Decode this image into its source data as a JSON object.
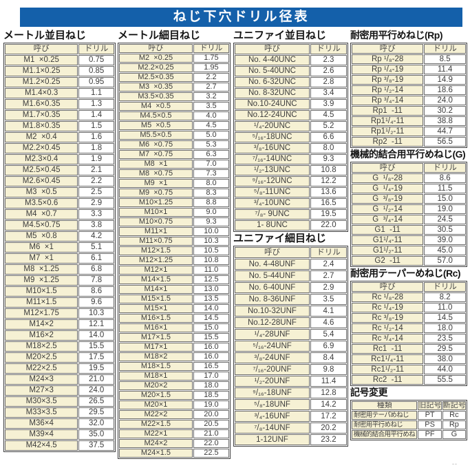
{
  "title": "ねじ下穴ドリル径表",
  "column_headers": {
    "name": "呼び",
    "drill": "ドリル"
  },
  "colors": {
    "title_bg": "#1460aa",
    "title_text": "#ffffff",
    "cell_accent": "#f6f1d4"
  },
  "corner_mark": "--",
  "sections": {
    "metric_coarse": {
      "title": "メートル並目ねじ",
      "rows": [
        [
          "M1  ×0.25",
          "0.75"
        ],
        [
          "M1.1×0.25",
          "0.85"
        ],
        [
          "M1.2×0.25",
          "0.95"
        ],
        [
          "M1.4×0.3",
          "1.1"
        ],
        [
          "M1.6×0.35",
          "1.3"
        ],
        [
          "M1.7×0.35",
          "1.4"
        ],
        [
          "M1.8×0.35",
          "1.5"
        ],
        [
          "M2  ×0.4",
          "1.6"
        ],
        [
          "M2.2×0.45",
          "1.8"
        ],
        [
          "M2.3×0.4",
          "1.9"
        ],
        [
          "M2.5×0.45",
          "2.1"
        ],
        [
          "M2.6×0.45",
          "2.2"
        ],
        [
          "M3  ×0.5",
          "2.5"
        ],
        [
          "M3.5×0.6",
          "2.9"
        ],
        [
          "M4  ×0.7",
          "3.3"
        ],
        [
          "M4.5×0.75",
          "3.8"
        ],
        [
          "M5  ×0.8",
          "4.2"
        ],
        [
          "M6  ×1",
          "5.1"
        ],
        [
          "M7  ×1",
          "6.1"
        ],
        [
          "M8  ×1.25",
          "6.8"
        ],
        [
          "M9  ×1.25",
          "7.8"
        ],
        [
          "M10×1.5",
          "8.6"
        ],
        [
          "M11×1.5",
          "9.6"
        ],
        [
          "M12×1.75",
          "10.3"
        ],
        [
          "M14×2",
          "12.1"
        ],
        [
          "M16×2",
          "14.0"
        ],
        [
          "M18×2.5",
          "15.5"
        ],
        [
          "M20×2.5",
          "17.5"
        ],
        [
          "M22×2.5",
          "19.5"
        ],
        [
          "M24×3",
          "21.0"
        ],
        [
          "M27×3",
          "24.0"
        ],
        [
          "M30×3.5",
          "26.5"
        ],
        [
          "M33×3.5",
          "29.5"
        ],
        [
          "M36×4",
          "32.0"
        ],
        [
          "M39×4",
          "35.0"
        ],
        [
          "M42×4.5",
          "37.5"
        ]
      ]
    },
    "metric_fine": {
      "title": "メートル細目ねじ",
      "rows": [
        [
          "M2  ×0.25",
          "1.75"
        ],
        [
          "M2.2×0.25",
          "1.95"
        ],
        [
          "M2.5×0.35",
          "2.2"
        ],
        [
          "M3  ×0.35",
          "2.7"
        ],
        [
          "M3.5×0.35",
          "3.2"
        ],
        [
          "M4  ×0.5",
          "3.5"
        ],
        [
          "M4.5×0.5",
          "4.0"
        ],
        [
          "M5  ×0.5",
          "4.5"
        ],
        [
          "M5.5×0.5",
          "5.0"
        ],
        [
          "M6  ×0.75",
          "5.3"
        ],
        [
          "M7  ×0.75",
          "6.3"
        ],
        [
          "M8  ×1",
          "7.0"
        ],
        [
          "M8  ×0.75",
          "7.3"
        ],
        [
          "M9  ×1",
          "8.0"
        ],
        [
          "M9  ×0.75",
          "8.3"
        ],
        [
          "M10×1.25",
          "8.8"
        ],
        [
          "M10×1",
          "9.0"
        ],
        [
          "M10×0.75",
          "9.3"
        ],
        [
          "M11×1",
          "10.0"
        ],
        [
          "M11×0.75",
          "10.3"
        ],
        [
          "M12×1.5",
          "10.5"
        ],
        [
          "M12×1.25",
          "10.8"
        ],
        [
          "M12×1",
          "11.0"
        ],
        [
          "M14×1.5",
          "12.5"
        ],
        [
          "M14×1",
          "13.0"
        ],
        [
          "M15×1.5",
          "13.5"
        ],
        [
          "M15×1",
          "14.0"
        ],
        [
          "M16×1.5",
          "14.5"
        ],
        [
          "M16×1",
          "15.0"
        ],
        [
          "M17×1.5",
          "15.5"
        ],
        [
          "M17×1",
          "16.0"
        ],
        [
          "M18×2",
          "16.0"
        ],
        [
          "M18×1.5",
          "16.5"
        ],
        [
          "M18×1",
          "17.0"
        ],
        [
          "M20×2",
          "18.0"
        ],
        [
          "M20×1.5",
          "18.5"
        ],
        [
          "M20×1",
          "19.0"
        ],
        [
          "M22×2",
          "20.0"
        ],
        [
          "M22×1.5",
          "20.5"
        ],
        [
          "M22×1",
          "21.0"
        ],
        [
          "M24×2",
          "22.0"
        ],
        [
          "M24×1.5",
          "22.5"
        ]
      ]
    },
    "unified_coarse": {
      "title": "ユニファイ並目ねじ",
      "rows": [
        [
          "No. 4-40UNC",
          "2.3"
        ],
        [
          "No. 5-40UNC",
          "2.6"
        ],
        [
          "No. 6-32UNC",
          "2.8"
        ],
        [
          "No. 8-32UNC",
          "3.4"
        ],
        [
          "No.10-24UNC",
          "3.9"
        ],
        [
          "No.12-24UNC",
          "4.5"
        ],
        [
          "¹/₄-20UNC",
          "5.2"
        ],
        [
          "⁵/₁₆-18UNC",
          "6.6"
        ],
        [
          "³/₈-16UNC",
          "8.0"
        ],
        [
          "⁷/₁₆-14UNC",
          "9.3"
        ],
        [
          "¹/₂-13UNC",
          "10.8"
        ],
        [
          "⁹/₁₆-12UNC",
          "12.2"
        ],
        [
          "⁵/₈-11UNC",
          "13.6"
        ],
        [
          "³/₄-10UNC",
          "16.5"
        ],
        [
          "⁷/₈- 9UNC",
          "19.5"
        ],
        [
          "1- 8UNC",
          "22.0"
        ]
      ]
    },
    "unified_fine": {
      "title": "ユニファイ細目ねじ",
      "rows": [
        [
          "No. 4-48UNF",
          "2.4"
        ],
        [
          "No. 5-44UNF",
          "2.7"
        ],
        [
          "No. 6-40UNF",
          "2.9"
        ],
        [
          "No. 8-36UNF",
          "3.5"
        ],
        [
          "No.10-32UNF",
          "4.1"
        ],
        [
          "No.12-28UNF",
          "4.6"
        ],
        [
          "¹/₄-28UNF",
          "5.4"
        ],
        [
          "⁵/₁₆-24UNF",
          "6.9"
        ],
        [
          "³/₈-24UNF",
          "8.4"
        ],
        [
          "⁷/₁₆-20UNF",
          "9.8"
        ],
        [
          "¹/₂-20UNF",
          "11.4"
        ],
        [
          "⁹/₁₆-18UNF",
          "12.8"
        ],
        [
          "⁵/₈-18UNF",
          "14.2"
        ],
        [
          "³/₄-16UNF",
          "17.2"
        ],
        [
          "⁷/₈-14UNF",
          "20.2"
        ],
        [
          "1-12UNF",
          "23.2"
        ]
      ]
    },
    "rp": {
      "title": "耐密用平行めねじ(Rp)",
      "rows": [
        [
          "Rp ¹/₈-28",
          "8.5"
        ],
        [
          "Rp ¹/₄-19",
          "11.4"
        ],
        [
          "Rp ³/₈-19",
          "14.9"
        ],
        [
          "Rp ¹/₂-14",
          "18.6"
        ],
        [
          "Rp ³/₄-14",
          "24.0"
        ],
        [
          "Rp1  -11",
          "30.2"
        ],
        [
          "Rp1¹/₄-11",
          "38.8"
        ],
        [
          "Rp1¹/₂-11",
          "44.7"
        ],
        [
          "Rp2  -11",
          "56.5"
        ]
      ]
    },
    "g": {
      "title": "機械的結合用平行めねじ(G)",
      "rows": [
        [
          "G  ¹/₈-28",
          "8.6"
        ],
        [
          "G  ¹/₄-19",
          "11.5"
        ],
        [
          "G  ³/₈-19",
          "15.0"
        ],
        [
          "G  ¹/₂-14",
          "19.0"
        ],
        [
          "G  ³/₄-14",
          "24.5"
        ],
        [
          "G1  -11",
          "30.5"
        ],
        [
          "G1¹/₄-11",
          "39.0"
        ],
        [
          "G1¹/₂-11",
          "45.0"
        ],
        [
          "G2  -11",
          "57.0"
        ]
      ]
    },
    "rc": {
      "title": "耐密用テーパーめねじ(Rc)",
      "rows": [
        [
          "Rc ¹/₈-28",
          "8.2"
        ],
        [
          "Rc ¹/₄-19",
          "11.0"
        ],
        [
          "Rc ³/₈-19",
          "14.5"
        ],
        [
          "Rc ¹/₂-14",
          "18.0"
        ],
        [
          "Rc ³/₄-14",
          "23.5"
        ],
        [
          "Rc1  -11",
          "29.5"
        ],
        [
          "Rc1¹/₄-11",
          "38.0"
        ],
        [
          "Rc1¹/₂-11",
          "44.0"
        ],
        [
          "Rc2  -11",
          "55.5"
        ]
      ]
    },
    "symbol_change": {
      "title": "記号変更",
      "headers": [
        "種類",
        "旧記号",
        "新記号"
      ],
      "rows": [
        [
          "耐密用テーパめねじ",
          "PT",
          "Rc"
        ],
        [
          "耐密用平行めねじ",
          "PS",
          "Rp"
        ],
        [
          "機械的結合用平行めねじ",
          "PF",
          "G"
        ]
      ]
    }
  }
}
